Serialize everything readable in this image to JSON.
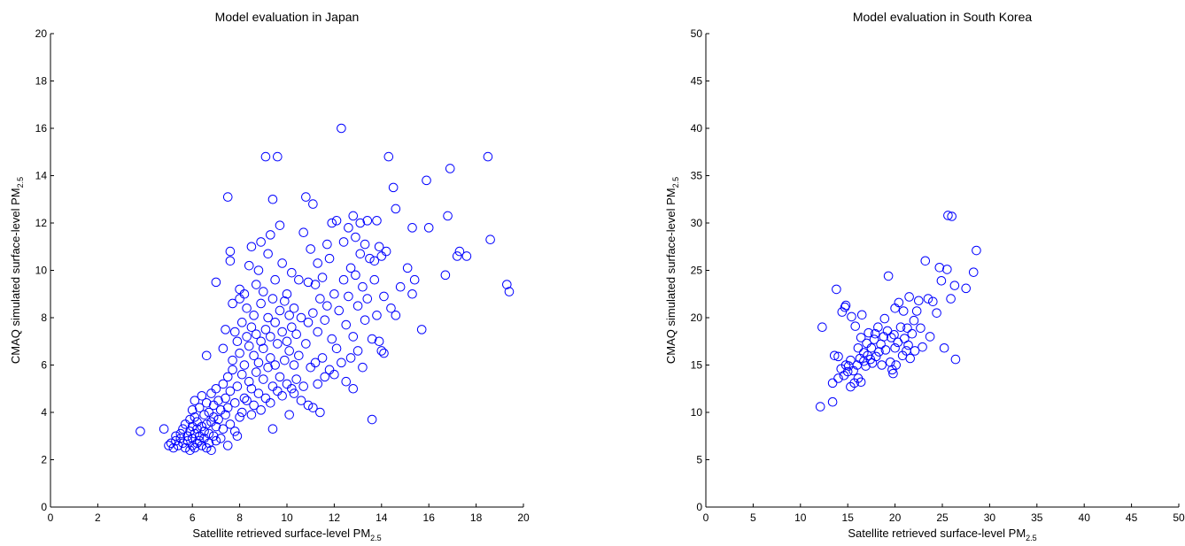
{
  "colors": {
    "marker": "#0000ff",
    "axis": "#000000"
  },
  "chart_data": [
    {
      "type": "scatter",
      "title": "Model evaluation in Japan",
      "xlabel": "Satellite retrieved  surface-level PM",
      "xlabel_sub": "2.5",
      "ylabel": "CMAQ simulated surface-level PM",
      "ylabel_sub": "2.5",
      "xlim": [
        0,
        20
      ],
      "ylim": [
        0,
        20
      ],
      "xticks": [
        0,
        2,
        4,
        6,
        8,
        10,
        12,
        14,
        16,
        18,
        20
      ],
      "yticks": [
        0,
        2,
        4,
        6,
        8,
        10,
        12,
        14,
        16,
        18,
        20
      ],
      "grid": false,
      "marker": "open-circle",
      "points": [
        [
          3.8,
          3.2
        ],
        [
          4.8,
          3.3
        ],
        [
          5.0,
          2.6
        ],
        [
          5.1,
          2.7
        ],
        [
          5.2,
          2.5
        ],
        [
          5.3,
          2.8
        ],
        [
          5.3,
          3.0
        ],
        [
          5.4,
          2.6
        ],
        [
          5.5,
          2.9
        ],
        [
          5.5,
          3.1
        ],
        [
          5.6,
          2.7
        ],
        [
          5.6,
          3.3
        ],
        [
          5.7,
          2.5
        ],
        [
          5.7,
          3.5
        ],
        [
          5.8,
          2.8
        ],
        [
          5.8,
          3.0
        ],
        [
          5.9,
          2.4
        ],
        [
          5.9,
          3.2
        ],
        [
          5.9,
          3.7
        ],
        [
          6.0,
          2.6
        ],
        [
          6.0,
          2.9
        ],
        [
          6.0,
          3.4
        ],
        [
          6.0,
          4.1
        ],
        [
          6.1,
          2.5
        ],
        [
          6.1,
          3.1
        ],
        [
          6.1,
          3.8
        ],
        [
          6.1,
          4.5
        ],
        [
          6.2,
          2.7
        ],
        [
          6.2,
          3.3
        ],
        [
          6.2,
          3.6
        ],
        [
          6.3,
          2.8
        ],
        [
          6.3,
          3.0
        ],
        [
          6.3,
          4.2
        ],
        [
          6.4,
          2.6
        ],
        [
          6.4,
          3.4
        ],
        [
          6.4,
          4.7
        ],
        [
          6.5,
          2.9
        ],
        [
          6.5,
          3.2
        ],
        [
          6.5,
          3.9
        ],
        [
          6.6,
          2.5
        ],
        [
          6.6,
          3.5
        ],
        [
          6.6,
          4.4
        ],
        [
          6.6,
          6.4
        ],
        [
          6.7,
          2.7
        ],
        [
          6.7,
          3.1
        ],
        [
          6.7,
          4.0
        ],
        [
          6.8,
          2.4
        ],
        [
          6.8,
          3.6
        ],
        [
          6.8,
          4.8
        ],
        [
          6.9,
          3.0
        ],
        [
          6.9,
          3.8
        ],
        [
          6.9,
          4.3
        ],
        [
          7.0,
          2.8
        ],
        [
          7.0,
          3.4
        ],
        [
          7.0,
          5.0
        ],
        [
          7.0,
          9.5
        ],
        [
          7.1,
          3.7
        ],
        [
          7.1,
          4.5
        ],
        [
          7.2,
          2.9
        ],
        [
          7.2,
          4.1
        ],
        [
          7.3,
          3.3
        ],
        [
          7.3,
          5.2
        ],
        [
          7.3,
          6.7
        ],
        [
          7.4,
          3.9
        ],
        [
          7.4,
          4.6
        ],
        [
          7.4,
          7.5
        ],
        [
          7.5,
          2.6
        ],
        [
          7.5,
          4.2
        ],
        [
          7.5,
          5.5
        ],
        [
          7.5,
          13.1
        ],
        [
          7.6,
          3.5
        ],
        [
          7.6,
          4.9
        ],
        [
          7.6,
          10.8
        ],
        [
          7.6,
          10.4
        ],
        [
          7.7,
          5.8
        ],
        [
          7.7,
          6.2
        ],
        [
          7.7,
          8.6
        ],
        [
          7.8,
          3.2
        ],
        [
          7.8,
          4.4
        ],
        [
          7.8,
          7.4
        ],
        [
          7.9,
          3.0
        ],
        [
          7.9,
          5.1
        ],
        [
          7.9,
          7.0
        ],
        [
          8.0,
          3.8
        ],
        [
          8.0,
          6.5
        ],
        [
          8.0,
          8.8
        ],
        [
          8.0,
          9.2
        ],
        [
          8.1,
          4.0
        ],
        [
          8.1,
          5.6
        ],
        [
          8.1,
          7.8
        ],
        [
          8.2,
          4.6
        ],
        [
          8.2,
          6.0
        ],
        [
          8.2,
          9.0
        ],
        [
          8.3,
          4.5
        ],
        [
          8.3,
          7.2
        ],
        [
          8.3,
          8.4
        ],
        [
          8.4,
          5.3
        ],
        [
          8.4,
          6.8
        ],
        [
          8.4,
          10.2
        ],
        [
          8.5,
          3.9
        ],
        [
          8.5,
          5.0
        ],
        [
          8.5,
          7.6
        ],
        [
          8.5,
          11.0
        ],
        [
          8.6,
          4.3
        ],
        [
          8.6,
          6.4
        ],
        [
          8.6,
          8.1
        ],
        [
          8.7,
          5.7
        ],
        [
          8.7,
          7.3
        ],
        [
          8.7,
          9.4
        ],
        [
          8.8,
          4.8
        ],
        [
          8.8,
          6.1
        ],
        [
          8.8,
          10.0
        ],
        [
          8.9,
          4.1
        ],
        [
          8.9,
          7.0
        ],
        [
          8.9,
          8.6
        ],
        [
          8.9,
          11.2
        ],
        [
          9.0,
          5.4
        ],
        [
          9.0,
          6.7
        ],
        [
          9.0,
          9.1
        ],
        [
          9.1,
          4.6
        ],
        [
          9.1,
          7.5
        ],
        [
          9.1,
          14.8
        ],
        [
          9.2,
          5.9
        ],
        [
          9.2,
          8.0
        ],
        [
          9.2,
          10.7
        ],
        [
          9.3,
          4.4
        ],
        [
          9.3,
          6.3
        ],
        [
          9.3,
          7.2
        ],
        [
          9.3,
          11.5
        ],
        [
          9.4,
          3.3
        ],
        [
          9.4,
          5.1
        ],
        [
          9.4,
          8.8
        ],
        [
          9.4,
          13.0
        ],
        [
          9.5,
          6.0
        ],
        [
          9.5,
          7.8
        ],
        [
          9.5,
          9.6
        ],
        [
          9.6,
          4.9
        ],
        [
          9.6,
          6.9
        ],
        [
          9.6,
          14.8
        ],
        [
          9.7,
          5.5
        ],
        [
          9.7,
          8.3
        ],
        [
          9.7,
          11.9
        ],
        [
          9.8,
          4.7
        ],
        [
          9.8,
          7.4
        ],
        [
          9.8,
          10.3
        ],
        [
          9.9,
          6.2
        ],
        [
          9.9,
          8.7
        ],
        [
          10.0,
          5.2
        ],
        [
          10.0,
          7.0
        ],
        [
          10.0,
          9.0
        ],
        [
          10.1,
          3.9
        ],
        [
          10.1,
          6.6
        ],
        [
          10.1,
          8.1
        ],
        [
          10.2,
          5.0
        ],
        [
          10.2,
          7.6
        ],
        [
          10.2,
          9.9
        ],
        [
          10.3,
          4.8
        ],
        [
          10.3,
          6.0
        ],
        [
          10.3,
          8.4
        ],
        [
          10.4,
          5.4
        ],
        [
          10.4,
          7.3
        ],
        [
          10.5,
          6.4
        ],
        [
          10.5,
          9.6
        ],
        [
          10.6,
          4.5
        ],
        [
          10.6,
          8.0
        ],
        [
          10.7,
          5.1
        ],
        [
          10.7,
          11.6
        ],
        [
          10.8,
          6.9
        ],
        [
          10.8,
          13.1
        ],
        [
          10.9,
          4.3
        ],
        [
          10.9,
          7.8
        ],
        [
          10.9,
          9.5
        ],
        [
          11.0,
          5.9
        ],
        [
          11.0,
          10.9
        ],
        [
          11.1,
          4.2
        ],
        [
          11.1,
          8.2
        ],
        [
          11.1,
          12.8
        ],
        [
          11.2,
          6.1
        ],
        [
          11.2,
          9.4
        ],
        [
          11.3,
          5.2
        ],
        [
          11.3,
          7.4
        ],
        [
          11.3,
          10.3
        ],
        [
          11.4,
          4.0
        ],
        [
          11.4,
          8.8
        ],
        [
          11.5,
          6.3
        ],
        [
          11.5,
          9.7
        ],
        [
          11.6,
          5.5
        ],
        [
          11.6,
          7.9
        ],
        [
          11.7,
          8.5
        ],
        [
          11.7,
          11.1
        ],
        [
          11.8,
          5.8
        ],
        [
          11.8,
          10.5
        ],
        [
          11.9,
          7.1
        ],
        [
          11.9,
          12.0
        ],
        [
          12.0,
          5.6
        ],
        [
          12.0,
          9.0
        ],
        [
          12.1,
          6.7
        ],
        [
          12.1,
          12.1
        ],
        [
          12.2,
          8.3
        ],
        [
          12.3,
          6.1
        ],
        [
          12.3,
          16.0
        ],
        [
          12.4,
          9.6
        ],
        [
          12.4,
          11.2
        ],
        [
          12.5,
          5.3
        ],
        [
          12.5,
          7.7
        ],
        [
          12.6,
          8.9
        ],
        [
          12.6,
          11.8
        ],
        [
          12.7,
          6.3
        ],
        [
          12.7,
          10.1
        ],
        [
          12.8,
          5.0
        ],
        [
          12.8,
          7.2
        ],
        [
          12.8,
          12.3
        ],
        [
          12.9,
          9.8
        ],
        [
          12.9,
          11.4
        ],
        [
          13.0,
          6.6
        ],
        [
          13.0,
          8.5
        ],
        [
          13.1,
          10.7
        ],
        [
          13.1,
          12.0
        ],
        [
          13.2,
          5.9
        ],
        [
          13.2,
          9.3
        ],
        [
          13.3,
          7.9
        ],
        [
          13.3,
          11.1
        ],
        [
          13.4,
          8.8
        ],
        [
          13.4,
          12.1
        ],
        [
          13.5,
          10.5
        ],
        [
          13.6,
          3.7
        ],
        [
          13.6,
          7.1
        ],
        [
          13.7,
          9.6
        ],
        [
          13.7,
          10.4
        ],
        [
          13.8,
          8.1
        ],
        [
          13.8,
          12.1
        ],
        [
          13.9,
          7.0
        ],
        [
          13.9,
          11.0
        ],
        [
          14.0,
          6.6
        ],
        [
          14.0,
          10.6
        ],
        [
          14.1,
          6.5
        ],
        [
          14.1,
          8.9
        ],
        [
          14.2,
          10.8
        ],
        [
          14.3,
          14.8
        ],
        [
          14.4,
          8.4
        ],
        [
          14.5,
          13.5
        ],
        [
          14.6,
          12.6
        ],
        [
          14.6,
          8.1
        ],
        [
          14.8,
          9.3
        ],
        [
          15.1,
          10.1
        ],
        [
          15.3,
          11.8
        ],
        [
          15.3,
          9.0
        ],
        [
          15.4,
          9.6
        ],
        [
          15.7,
          7.5
        ],
        [
          15.9,
          13.8
        ],
        [
          16.0,
          11.8
        ],
        [
          16.7,
          9.8
        ],
        [
          16.8,
          12.3
        ],
        [
          16.9,
          14.3
        ],
        [
          17.2,
          10.6
        ],
        [
          17.3,
          10.8
        ],
        [
          17.6,
          10.6
        ],
        [
          18.5,
          14.8
        ],
        [
          18.6,
          11.3
        ],
        [
          19.3,
          9.4
        ],
        [
          19.4,
          9.1
        ]
      ]
    },
    {
      "type": "scatter",
      "title": "Model evaluation in South Korea",
      "xlabel": "Satellite retrieved surface-level PM",
      "xlabel_sub": "2.5",
      "ylabel": "CMAQ simulated surface-level PM",
      "ylabel_sub": "2.5",
      "xlim": [
        0,
        50
      ],
      "ylim": [
        0,
        50
      ],
      "xticks": [
        0,
        5,
        10,
        15,
        20,
        25,
        30,
        35,
        40,
        45,
        50
      ],
      "yticks": [
        0,
        5,
        10,
        15,
        20,
        25,
        30,
        35,
        40,
        45,
        50
      ],
      "grid": false,
      "marker": "open-circle",
      "points": [
        [
          12.1,
          10.6
        ],
        [
          12.3,
          19.0
        ],
        [
          13.4,
          11.1
        ],
        [
          13.4,
          13.1
        ],
        [
          13.6,
          16.0
        ],
        [
          13.8,
          23.0
        ],
        [
          14.0,
          13.6
        ],
        [
          14.0,
          15.9
        ],
        [
          14.3,
          14.6
        ],
        [
          14.4,
          20.6
        ],
        [
          14.6,
          13.9
        ],
        [
          14.7,
          21.1
        ],
        [
          14.8,
          21.3
        ],
        [
          14.8,
          15.0
        ],
        [
          15.0,
          14.3
        ],
        [
          15.1,
          14.9
        ],
        [
          15.3,
          12.7
        ],
        [
          15.3,
          15.5
        ],
        [
          15.4,
          20.1
        ],
        [
          15.6,
          14.4
        ],
        [
          15.7,
          13.1
        ],
        [
          15.8,
          19.1
        ],
        [
          16.0,
          15.0
        ],
        [
          16.1,
          16.8
        ],
        [
          16.1,
          13.6
        ],
        [
          16.3,
          15.7
        ],
        [
          16.4,
          17.9
        ],
        [
          16.4,
          13.2
        ],
        [
          16.5,
          20.3
        ],
        [
          16.7,
          15.4
        ],
        [
          16.7,
          16.3
        ],
        [
          16.9,
          14.9
        ],
        [
          17.0,
          17.3
        ],
        [
          17.1,
          16.0
        ],
        [
          17.2,
          18.4
        ],
        [
          17.4,
          15.6
        ],
        [
          17.5,
          16.8
        ],
        [
          17.6,
          15.2
        ],
        [
          17.8,
          17.7
        ],
        [
          17.9,
          18.3
        ],
        [
          18.0,
          15.9
        ],
        [
          18.2,
          19.0
        ],
        [
          18.3,
          16.4
        ],
        [
          18.5,
          17.2
        ],
        [
          18.6,
          15.0
        ],
        [
          18.8,
          18.0
        ],
        [
          18.9,
          19.9
        ],
        [
          19.0,
          16.6
        ],
        [
          19.2,
          18.6
        ],
        [
          19.3,
          24.4
        ],
        [
          19.5,
          15.3
        ],
        [
          19.6,
          17.9
        ],
        [
          19.7,
          14.5
        ],
        [
          19.8,
          14.1
        ],
        [
          19.9,
          18.2
        ],
        [
          20.0,
          21.0
        ],
        [
          20.0,
          16.8
        ],
        [
          20.1,
          15.0
        ],
        [
          20.3,
          17.4
        ],
        [
          20.4,
          21.6
        ],
        [
          20.6,
          19.0
        ],
        [
          20.8,
          16.0
        ],
        [
          20.9,
          20.7
        ],
        [
          21.0,
          17.8
        ],
        [
          21.2,
          16.5
        ],
        [
          21.3,
          18.9
        ],
        [
          21.4,
          17.1
        ],
        [
          21.5,
          22.2
        ],
        [
          21.6,
          15.7
        ],
        [
          21.8,
          18.3
        ],
        [
          22.0,
          19.7
        ],
        [
          22.1,
          16.5
        ],
        [
          22.3,
          20.7
        ],
        [
          22.5,
          21.8
        ],
        [
          22.7,
          18.9
        ],
        [
          22.9,
          16.9
        ],
        [
          23.2,
          26.0
        ],
        [
          23.5,
          22.0
        ],
        [
          23.7,
          18.0
        ],
        [
          24.0,
          21.7
        ],
        [
          24.4,
          20.5
        ],
        [
          24.7,
          25.3
        ],
        [
          24.9,
          23.9
        ],
        [
          25.2,
          16.8
        ],
        [
          25.5,
          25.1
        ],
        [
          25.6,
          30.8
        ],
        [
          25.9,
          22.0
        ],
        [
          26.0,
          30.7
        ],
        [
          26.3,
          23.4
        ],
        [
          26.4,
          15.6
        ],
        [
          27.5,
          23.1
        ],
        [
          28.3,
          24.8
        ],
        [
          28.6,
          27.1
        ]
      ]
    }
  ]
}
